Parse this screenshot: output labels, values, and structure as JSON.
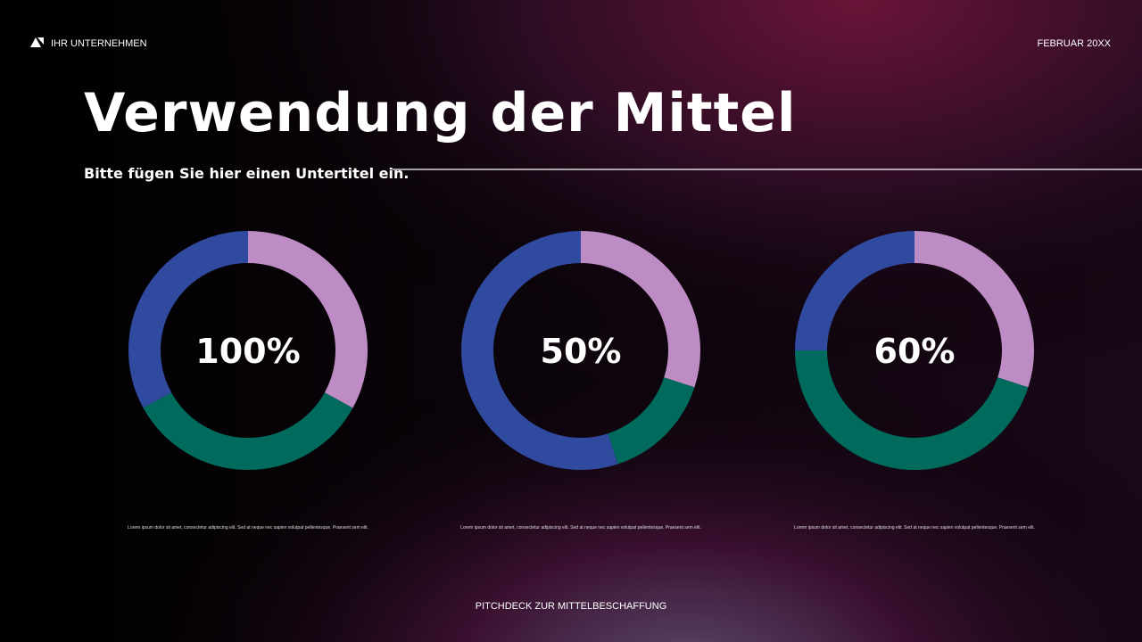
{
  "header": {
    "company": "IHR UNTERNEHMEN",
    "date": "FEBRUAR 20XX",
    "title": "Verwendung der Mittel",
    "subtitle": "Bitte fügen Sie hier einen Untertitel ein."
  },
  "footer": "PITCHDECK ZUR MITTELBESCHAFFUNG",
  "chart_data": [
    {
      "type": "donut",
      "center_label": "100%",
      "values": [
        33,
        34,
        33
      ],
      "colors": [
        "#be8cc4",
        "#006b5c",
        "#2f4a9e"
      ],
      "caption": "Lorem ipsum dolor sit amet, consectetur adipiscing elit. Sed at neque nec sapien volutpat pellentesque. Praesent sem elit."
    },
    {
      "type": "donut",
      "center_label": "50%",
      "values": [
        30,
        15,
        55
      ],
      "colors": [
        "#be8cc4",
        "#006b5c",
        "#2f4a9e"
      ],
      "caption": "Lorem ipsum dolor sit amet, consectetur adipiscing elit. Sed at neque nec sapien volutpat pellentesque. Praesent sem elit."
    },
    {
      "type": "donut",
      "center_label": "60%",
      "values": [
        30,
        45,
        25
      ],
      "colors": [
        "#be8cc4",
        "#006b5c",
        "#2f4a9e"
      ],
      "caption": "Lorem ipsum dolor sit amet, consectetur adipiscing elit. Sed at neque nec sapien volutpat pellentesque. Praesent sem elit."
    }
  ]
}
